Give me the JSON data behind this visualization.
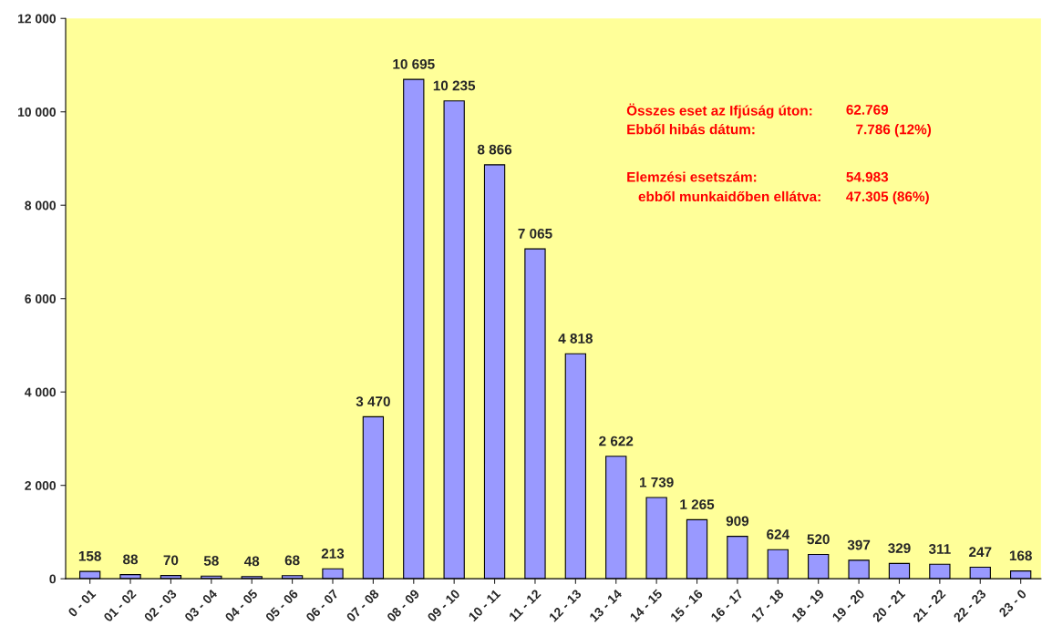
{
  "chart_data": {
    "type": "bar",
    "categories": [
      "0 - 01",
      "01 - 02",
      "02 - 03",
      "03 - 04",
      "04 - 05",
      "05 - 06",
      "06 - 07",
      "07 - 08",
      "08 - 09",
      "09 - 10",
      "10 - 11",
      "11 - 12",
      "12 - 13",
      "13 - 14",
      "14 - 15",
      "15 - 16",
      "16 - 17",
      "17 - 18",
      "18 - 19",
      "19 - 20",
      "20 - 21",
      "21 - 22",
      "22 - 23",
      "23 - 0"
    ],
    "values": [
      158,
      88,
      70,
      58,
      48,
      68,
      213,
      3470,
      10695,
      10235,
      8866,
      7065,
      4818,
      2622,
      1739,
      1265,
      909,
      624,
      520,
      397,
      329,
      311,
      247,
      168
    ],
    "value_labels": [
      "158",
      "88",
      "70",
      "58",
      "48",
      "68",
      "213",
      "3 470",
      "10 695",
      "10 235",
      "8 866",
      "7 065",
      "4 818",
      "2 622",
      "1 739",
      "1 265",
      "909",
      "624",
      "520",
      "397",
      "329",
      "311",
      "247",
      "168"
    ],
    "color": "#9999ff",
    "ylim": [
      0,
      12000
    ],
    "yticks": [
      {
        "value": 0,
        "label": "0"
      },
      {
        "value": 2000,
        "label": "2 000"
      },
      {
        "value": 4000,
        "label": "4 000"
      },
      {
        "value": 6000,
        "label": "6 000"
      },
      {
        "value": 8000,
        "label": "8 000"
      },
      {
        "value": 10000,
        "label": "10 000"
      },
      {
        "value": 12000,
        "label": "12 000"
      }
    ],
    "grid": false,
    "annotations": [
      "Összes eset az Ifjúság úton:",
      "62.769",
      "Ebből hibás dátum:",
      "7.786 (12%)",
      "Elemzési esetszám:",
      "54.983",
      "ebből munkaidőben ellátva:",
      "47.305 (86%)"
    ]
  }
}
